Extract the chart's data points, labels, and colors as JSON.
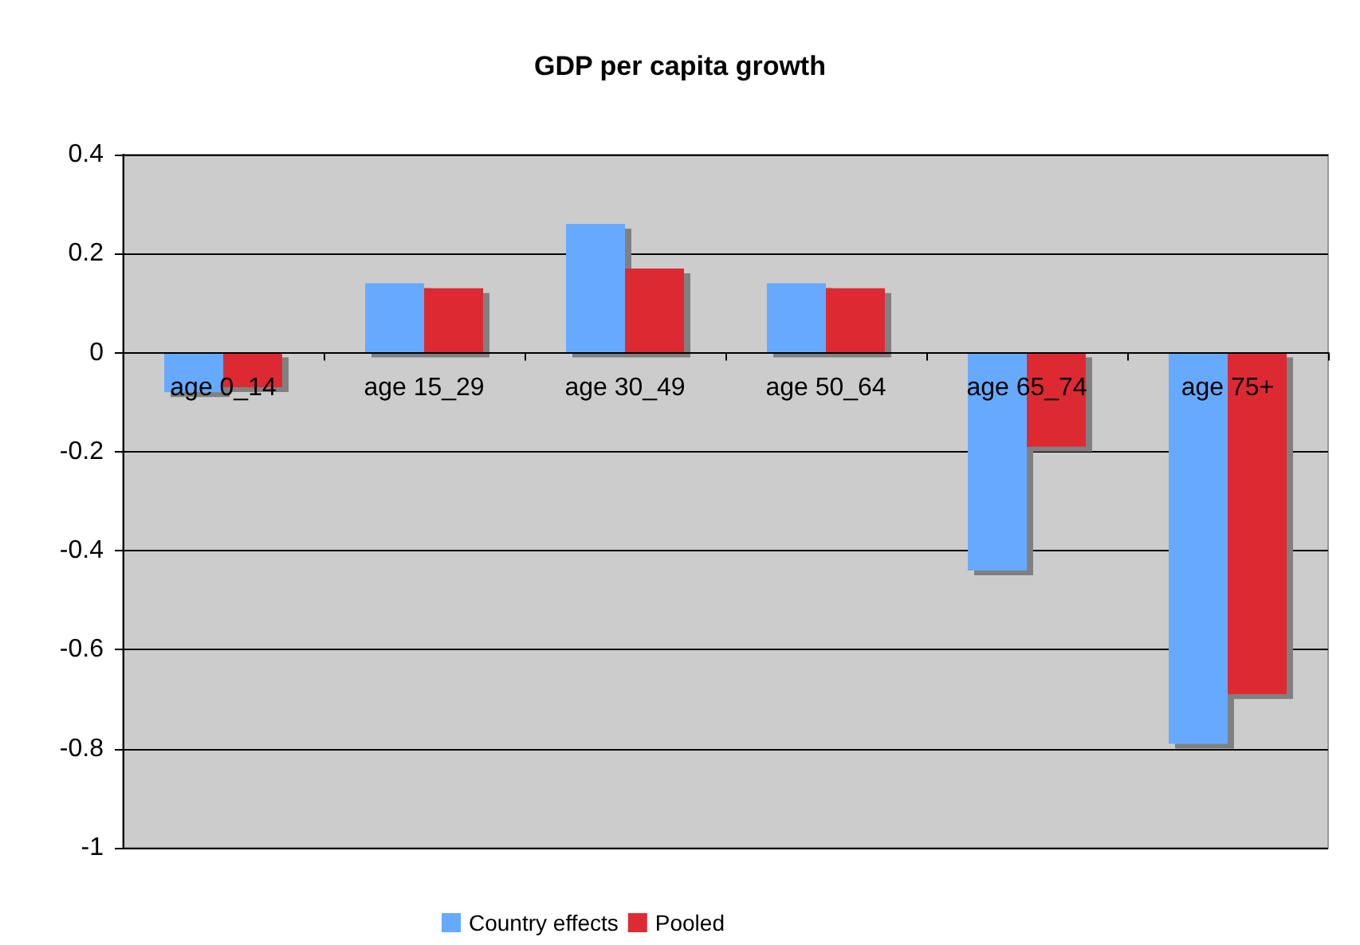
{
  "chart_data": {
    "type": "bar",
    "title": "GDP per capita growth",
    "categories": [
      "age 0_14",
      "age 15_29",
      "age 30_49",
      "age 50_64",
      "age 65_74",
      "age 75+"
    ],
    "series": [
      {
        "name": "Country effects",
        "color": "#66aaff",
        "values": [
          -0.08,
          0.14,
          0.26,
          0.14,
          -0.44,
          -0.79
        ]
      },
      {
        "name": "Pooled",
        "color": "#dd2a33",
        "values": [
          -0.07,
          0.13,
          0.17,
          0.13,
          -0.19,
          -0.69
        ]
      }
    ],
    "ylim": [
      -1,
      0.4
    ],
    "yticks": [
      -1,
      -0.8,
      -0.6,
      -0.4,
      -0.2,
      0,
      0.2,
      0.4
    ],
    "grid": "y",
    "legend": "bottom"
  }
}
